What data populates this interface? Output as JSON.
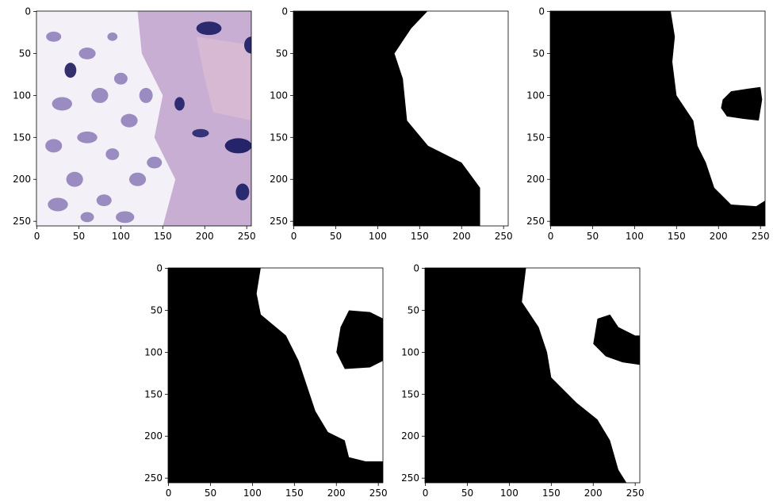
{
  "chart_data": [
    {
      "type": "image",
      "xlim": [
        -0.5,
        255.5
      ],
      "ylim": [
        255.5,
        -0.5
      ],
      "xticks": [
        0,
        50,
        100,
        150,
        200,
        250
      ],
      "yticks": [
        0,
        50,
        100,
        150,
        200,
        250
      ]
    },
    {
      "type": "image",
      "xlim": [
        -0.5,
        255.5
      ],
      "ylim": [
        255.5,
        -0.5
      ],
      "xticks": [
        0,
        50,
        100,
        150,
        200,
        250
      ],
      "yticks": [
        0,
        50,
        100,
        150,
        200,
        250
      ]
    },
    {
      "type": "image",
      "xlim": [
        -0.5,
        255.5
      ],
      "ylim": [
        255.5,
        -0.5
      ],
      "xticks": [
        0,
        50,
        100,
        150,
        200,
        250
      ],
      "yticks": [
        0,
        50,
        100,
        150,
        200,
        250
      ]
    },
    {
      "type": "image",
      "xlim": [
        -0.5,
        255.5
      ],
      "ylim": [
        255.5,
        -0.5
      ],
      "xticks": [
        0,
        50,
        100,
        150,
        200,
        250
      ],
      "yticks": [
        0,
        50,
        100,
        150,
        200,
        250
      ]
    },
    {
      "type": "image",
      "xlim": [
        -0.5,
        255.5
      ],
      "ylim": [
        255.5,
        -0.5
      ],
      "xticks": [
        0,
        50,
        100,
        150,
        200,
        250
      ],
      "yticks": [
        0,
        50,
        100,
        150,
        200,
        250
      ]
    }
  ]
}
